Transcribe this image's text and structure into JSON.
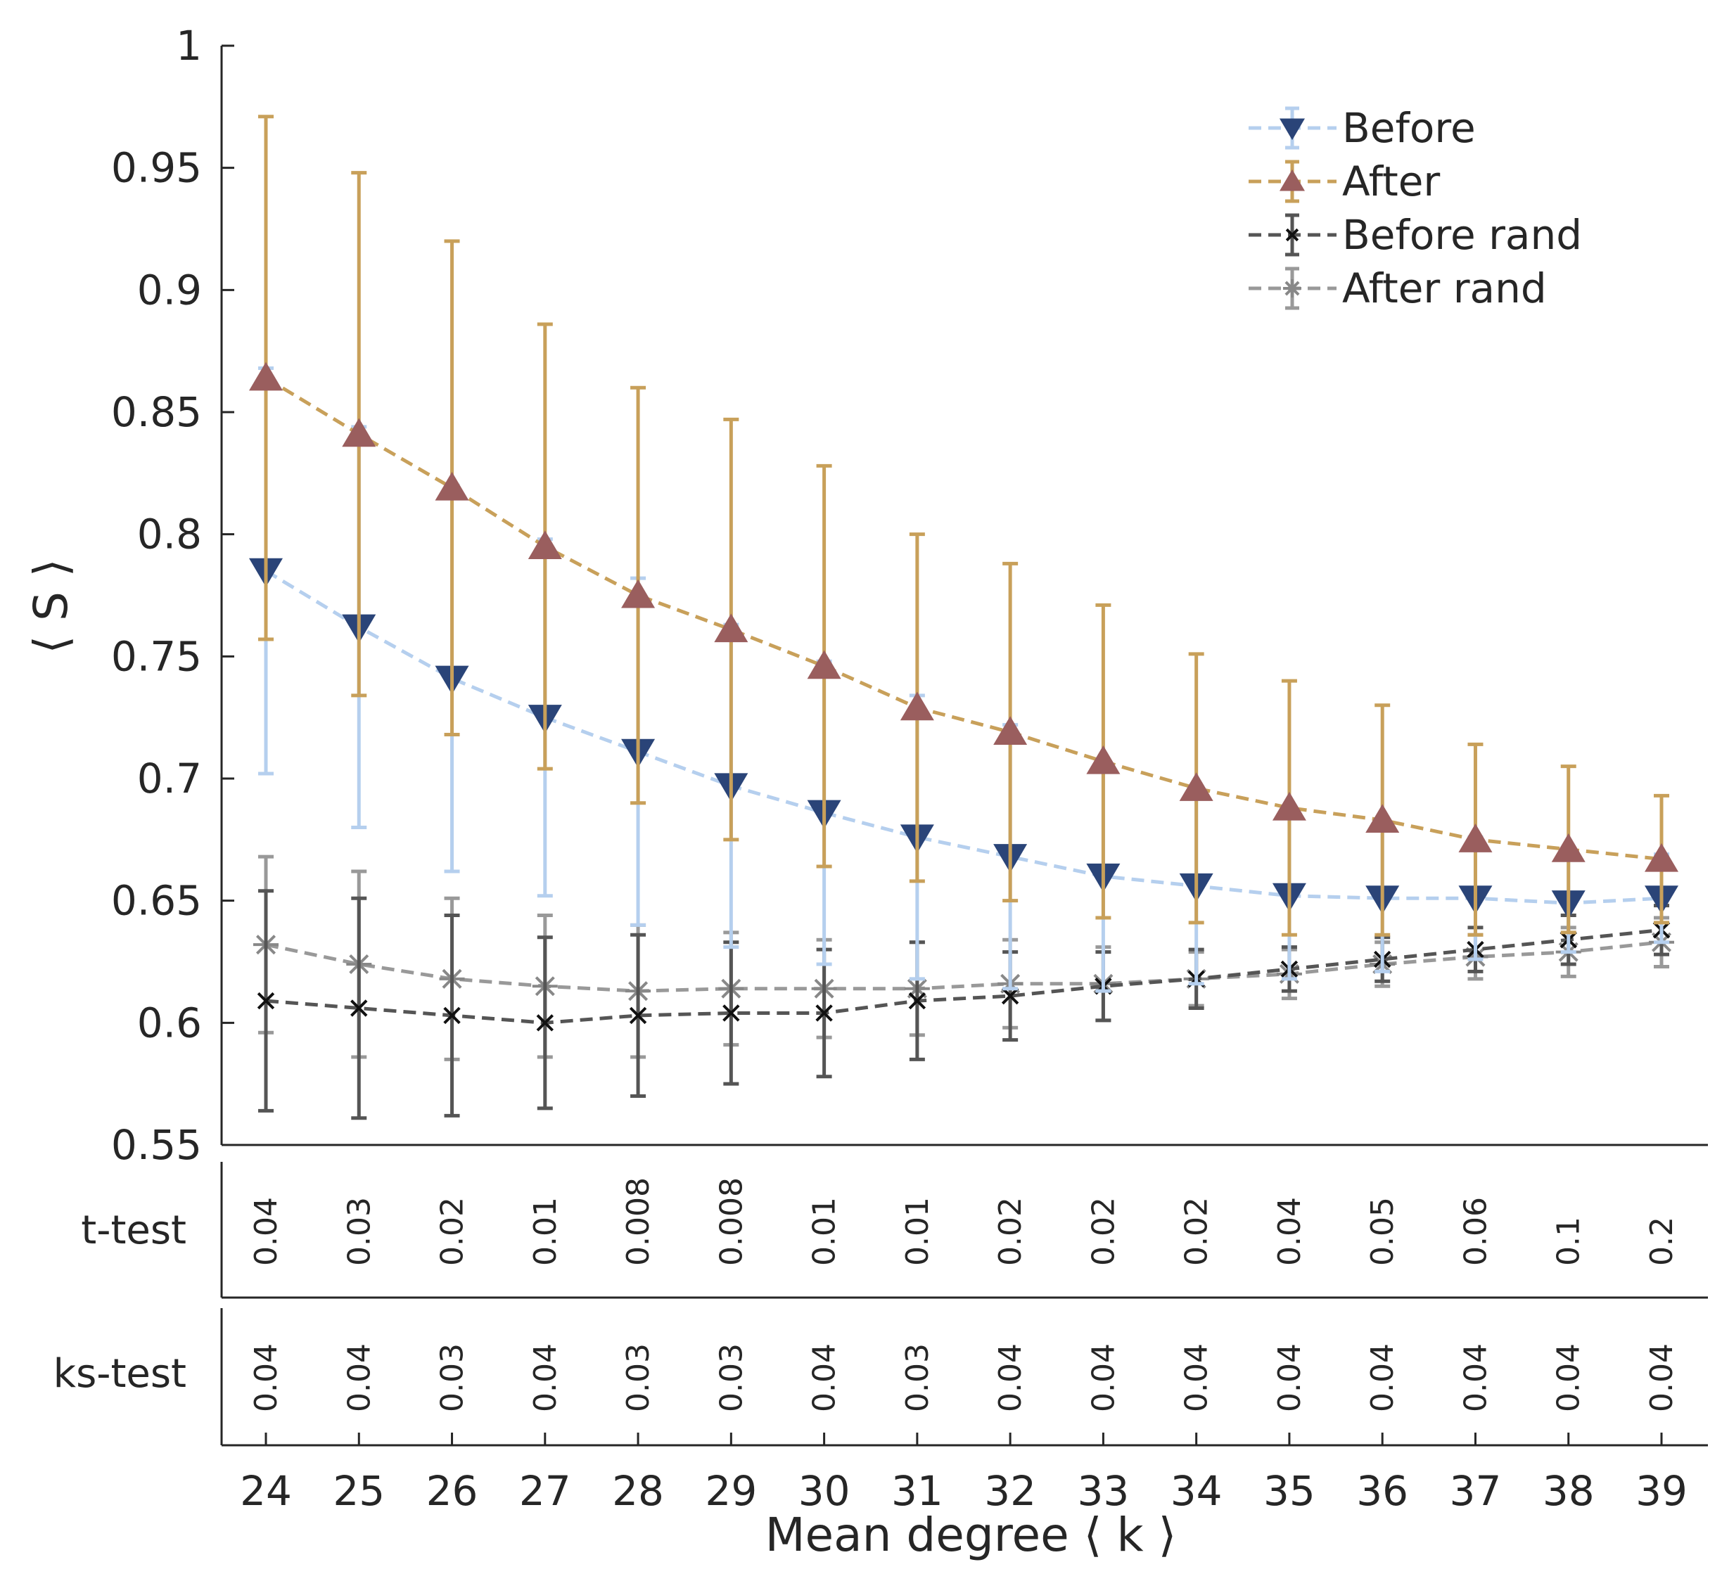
{
  "chart_data": {
    "type": "line",
    "xlabel": "Mean degree ⟨ k ⟩",
    "ylabel": "⟨ S ⟩",
    "ylim": [
      0.55,
      1
    ],
    "yticks": [
      "0.55",
      "0.6",
      "0.65",
      "0.7",
      "0.75",
      "0.8",
      "0.85",
      "0.9",
      "0.95",
      "1"
    ],
    "x": [
      24,
      25,
      26,
      27,
      28,
      29,
      30,
      31,
      32,
      33,
      34,
      35,
      36,
      37,
      38,
      39
    ],
    "series": [
      {
        "name": "Before",
        "line_color": "#b5cfee",
        "marker_color": "#2a4478",
        "marker": "triangle-down",
        "values": [
          0.785,
          0.762,
          0.741,
          0.725,
          0.711,
          0.697,
          0.686,
          0.676,
          0.668,
          0.66,
          0.656,
          0.652,
          0.651,
          0.651,
          0.649,
          0.651
        ],
        "errors": [
          0.083,
          0.082,
          0.079,
          0.073,
          0.071,
          0.066,
          0.062,
          0.058,
          0.054,
          0.047,
          0.04,
          0.034,
          0.03,
          0.025,
          0.02,
          0.018
        ]
      },
      {
        "name": "After",
        "line_color": "#c8a05a",
        "marker_color": "#9a5e5e",
        "marker": "triangle-up",
        "values": [
          0.864,
          0.841,
          0.819,
          0.795,
          0.775,
          0.761,
          0.746,
          0.729,
          0.719,
          0.707,
          0.696,
          0.688,
          0.683,
          0.675,
          0.671,
          0.667
        ],
        "errors": [
          0.107,
          0.107,
          0.101,
          0.091,
          0.085,
          0.086,
          0.082,
          0.071,
          0.069,
          0.064,
          0.055,
          0.052,
          0.047,
          0.039,
          0.034,
          0.026
        ]
      },
      {
        "name": "Before rand",
        "line_color": "#555555",
        "marker_color": "#111111",
        "marker": "x",
        "values": [
          0.609,
          0.606,
          0.603,
          0.6,
          0.603,
          0.604,
          0.604,
          0.609,
          0.611,
          0.615,
          0.618,
          0.622,
          0.626,
          0.63,
          0.634,
          0.638
        ],
        "errors": [
          0.045,
          0.045,
          0.041,
          0.035,
          0.033,
          0.029,
          0.026,
          0.024,
          0.018,
          0.014,
          0.012,
          0.009,
          0.009,
          0.009,
          0.01,
          0.01
        ]
      },
      {
        "name": "After rand",
        "line_color": "#999999",
        "marker_color": "#888888",
        "marker": "asterisk",
        "values": [
          0.632,
          0.624,
          0.618,
          0.615,
          0.613,
          0.614,
          0.614,
          0.614,
          0.616,
          0.616,
          0.618,
          0.62,
          0.624,
          0.627,
          0.629,
          0.633
        ],
        "errors": [
          0.036,
          0.038,
          0.033,
          0.029,
          0.027,
          0.023,
          0.02,
          0.019,
          0.018,
          0.015,
          0.011,
          0.01,
          0.009,
          0.009,
          0.01,
          0.01
        ]
      }
    ],
    "legend_position": "top-right",
    "pvalue_rows": [
      {
        "label": "t-test",
        "values": [
          "0.04",
          "0.03",
          "0.02",
          "0.01",
          "0.008",
          "0.008",
          "0.01",
          "0.01",
          "0.02",
          "0.02",
          "0.02",
          "0.04",
          "0.05",
          "0.06",
          "0.1",
          "0.2"
        ]
      },
      {
        "label": "ks-test",
        "values": [
          "0.04",
          "0.04",
          "0.03",
          "0.04",
          "0.03",
          "0.03",
          "0.04",
          "0.03",
          "0.04",
          "0.04",
          "0.04",
          "0.04",
          "0.04",
          "0.04",
          "0.04",
          "0.04"
        ]
      }
    ]
  }
}
